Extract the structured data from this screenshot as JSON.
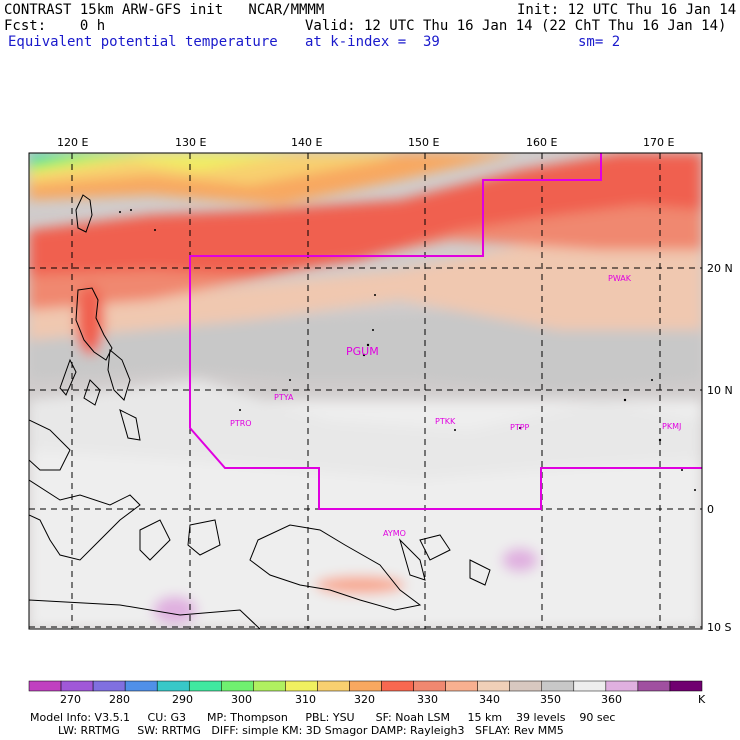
{
  "header": {
    "title": "CONTRAST 15km ARW-GFS init   NCAR/MMMM",
    "init": "Init: 12 UTC Thu 16 Jan 14",
    "fcst": "Fcst:    0 h",
    "valid": "Valid: 12 UTC Thu 16 Jan 14 (22 ChT Thu 16 Jan 14)",
    "field": "Equivalent potential temperature",
    "level": "at k-index =  39",
    "smooth": "sm= 2"
  },
  "map": {
    "lon_labels": [
      "120 E",
      "130 E",
      "140 E",
      "150 E",
      "160 E",
      "170 E"
    ],
    "lat_labels": [
      "20 N",
      "10 N",
      "0",
      "10 S"
    ],
    "stations": [
      {
        "id": "PGUM",
        "big": true
      },
      {
        "id": "PTYA"
      },
      {
        "id": "PTRO"
      },
      {
        "id": "PTKK"
      },
      {
        "id": "PTPP"
      },
      {
        "id": "PKMJ"
      },
      {
        "id": "PWAK"
      },
      {
        "id": "AYMO"
      }
    ]
  },
  "colorbar": {
    "labels": [
      "270",
      "280",
      "290",
      "300",
      "310",
      "320",
      "330",
      "340",
      "350",
      "360"
    ],
    "unit": "K",
    "colors": [
      "#c040c0",
      "#a058d8",
      "#8070e0",
      "#5090e8",
      "#38c8c8",
      "#40e8a0",
      "#70f070",
      "#b0f060",
      "#f0f060",
      "#f8d070",
      "#f8a860",
      "#f86850",
      "#f08870",
      "#f8b090",
      "#f0d0b8",
      "#d8c8c0",
      "#c8c8c8",
      "#eeeeee",
      "#e0b0e0",
      "#a050a0",
      "#700070"
    ]
  },
  "footer": {
    "line1": "Model Info: V3.5.1     CU: G3      MP: Thompson     PBL: YSU      SF: Noah LSM     15 km    39 levels    90 sec",
    "line2": "        LW: RRTMG     SW: RRTMG   DIFF: simple KM: 3D Smagor DAMP: Rayleigh3   SFLAY: Rev MM5"
  }
}
